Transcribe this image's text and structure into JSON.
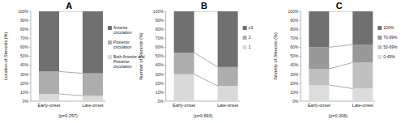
{
  "chart_data": [
    {
      "type": "bar",
      "stacked": true,
      "title": "A",
      "y_label": "Location of Stenosis (%)",
      "categories": [
        "Early-onset",
        "Late-onset"
      ],
      "series": [
        {
          "name": "Both Anterior and Posterior circulation",
          "color": "#d9d9d9",
          "values": [
            8,
            6
          ]
        },
        {
          "name": "Posterior circulation",
          "color": "#adadad",
          "values": [
            25,
            25
          ]
        },
        {
          "name": "Anterior circulation",
          "color": "#707070",
          "values": [
            67,
            69
          ]
        }
      ],
      "ylim": [
        0,
        100
      ],
      "yticks": [
        {
          "value": 0,
          "label": "0%"
        },
        {
          "value": 10,
          "label": "10%"
        },
        {
          "value": 20,
          "label": "20%"
        },
        {
          "value": 30,
          "label": "30%"
        },
        {
          "value": 40,
          "label": "40%"
        },
        {
          "value": 50,
          "label": "50%"
        },
        {
          "value": 60,
          "label": "60%"
        },
        {
          "value": 70,
          "label": "70%"
        },
        {
          "value": 80,
          "label": "80%"
        },
        {
          "value": 90,
          "label": "90%"
        },
        {
          "value": 100,
          "label": "100%"
        }
      ],
      "grid": false,
      "legend": "right",
      "annotation": "(p=0.257)"
    },
    {
      "type": "bar",
      "stacked": true,
      "title": "B",
      "y_label": "Number of Stenosis (%)",
      "categories": [
        "Early-onset",
        "Late-onset"
      ],
      "series": [
        {
          "name": "1",
          "color": "#d9d9d9",
          "values": [
            30,
            17
          ]
        },
        {
          "name": "2",
          "color": "#adadad",
          "values": [
            24,
            21
          ]
        },
        {
          "name": "≥3",
          "color": "#707070",
          "values": [
            46,
            62
          ]
        }
      ],
      "ylim": [
        0,
        100
      ],
      "yticks": [
        {
          "value": 0,
          "label": "0%"
        },
        {
          "value": 10,
          "label": "10%"
        },
        {
          "value": 20,
          "label": "20%"
        },
        {
          "value": 30,
          "label": "30%"
        },
        {
          "value": 40,
          "label": "40%"
        },
        {
          "value": 50,
          "label": "50%"
        },
        {
          "value": 60,
          "label": "60%"
        },
        {
          "value": 70,
          "label": "70%"
        },
        {
          "value": 80,
          "label": "80%"
        },
        {
          "value": 90,
          "label": "90%"
        },
        {
          "value": 100,
          "label": "100%"
        }
      ],
      "grid": false,
      "legend": "right",
      "annotation": "(p=0.693)"
    },
    {
      "type": "bar",
      "stacked": true,
      "title": "C",
      "y_label": "Severity of Stenosis (%)",
      "categories": [
        "Early-onset",
        "Late-onset"
      ],
      "series": [
        {
          "name": "0-49%",
          "color": "#dcdcdc",
          "values": [
            18,
            14
          ]
        },
        {
          "name": "50-69%",
          "color": "#c0c0c0",
          "values": [
            18,
            29
          ]
        },
        {
          "name": "70-99%",
          "color": "#999999",
          "values": [
            24,
            20
          ]
        },
        {
          "name": "100%",
          "color": "#707070",
          "values": [
            40,
            37
          ]
        }
      ],
      "ylim": [
        0,
        100
      ],
      "yticks": [
        {
          "value": 0,
          "label": "0%"
        },
        {
          "value": 10,
          "label": "10%"
        },
        {
          "value": 20,
          "label": "20%"
        },
        {
          "value": 30,
          "label": "30%"
        },
        {
          "value": 40,
          "label": "40%"
        },
        {
          "value": 50,
          "label": "50%"
        },
        {
          "value": 60,
          "label": "60%"
        },
        {
          "value": 70,
          "label": "70%"
        },
        {
          "value": 80,
          "label": "80%"
        },
        {
          "value": 90,
          "label": "90%"
        },
        {
          "value": 100,
          "label": "100%"
        }
      ],
      "grid": false,
      "legend": "right",
      "annotation": "(p=0.006)"
    }
  ]
}
